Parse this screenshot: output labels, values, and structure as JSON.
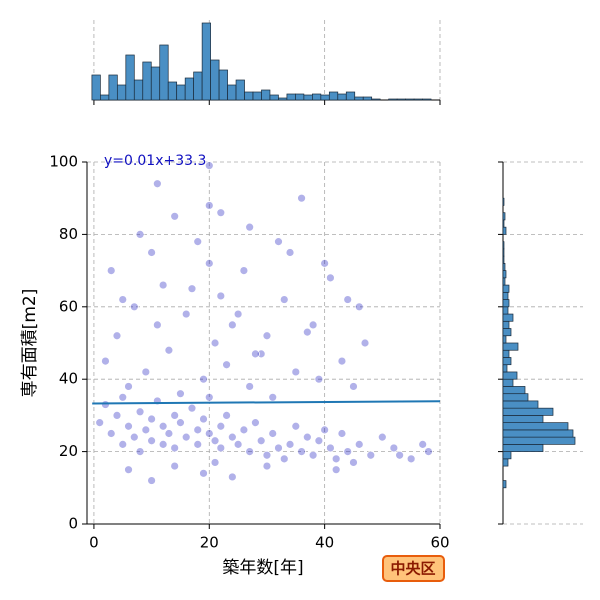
{
  "chart_data": [
    {
      "type": "scatter",
      "xlabel": "築年数[年]",
      "ylabel": "専有面積[m2]",
      "annotation": "y=0.01x+33.3",
      "badge": "中央区",
      "xlim": [
        -1.2,
        60
      ],
      "ylim": [
        0,
        100
      ],
      "xticks": [
        0,
        20,
        40,
        60
      ],
      "yticks": [
        0,
        20,
        40,
        60,
        80,
        100
      ],
      "grid": true,
      "color": "#2020c0",
      "fit_color": "#1f77b4",
      "fit": {
        "x": [
          -0.3,
          60
        ],
        "y": [
          33.3,
          33.9
        ]
      },
      "x": [
        1,
        2,
        3,
        4,
        5,
        5,
        6,
        7,
        8,
        8,
        9,
        10,
        10,
        11,
        12,
        12,
        13,
        14,
        14,
        15,
        16,
        17,
        18,
        18,
        19,
        20,
        20,
        21,
        22,
        22,
        23,
        24,
        25,
        26,
        27,
        28,
        29,
        30,
        31,
        32,
        33,
        34,
        35,
        36,
        37,
        38,
        39,
        40,
        41,
        42,
        43,
        44,
        45,
        46,
        48,
        50,
        52,
        55,
        58,
        2,
        4,
        6,
        7,
        9,
        11,
        13,
        15,
        17,
        19,
        20,
        21,
        23,
        25,
        27,
        29,
        31,
        33,
        35,
        37,
        39,
        41,
        43,
        45,
        47,
        3,
        5,
        8,
        10,
        12,
        14,
        16,
        18,
        20,
        22,
        24,
        26,
        28,
        30,
        32,
        36,
        40,
        44,
        11,
        20,
        22,
        27,
        34,
        38,
        46,
        6,
        10,
        14,
        19,
        21,
        24,
        30,
        42,
        53,
        57
      ],
      "y": [
        28,
        33,
        25,
        30,
        22,
        35,
        27,
        24,
        31,
        20,
        26,
        29,
        23,
        34,
        22,
        27,
        25,
        30,
        21,
        28,
        24,
        32,
        26,
        22,
        29,
        25,
        35,
        23,
        27,
        21,
        30,
        24,
        22,
        26,
        20,
        28,
        23,
        19,
        25,
        21,
        18,
        22,
        27,
        20,
        24,
        19,
        23,
        26,
        21,
        18,
        25,
        20,
        17,
        22,
        19,
        24,
        21,
        18,
        20,
        45,
        52,
        38,
        60,
        42,
        55,
        48,
        36,
        65,
        40,
        72,
        50,
        44,
        58,
        38,
        47,
        35,
        62,
        42,
        53,
        40,
        68,
        45,
        38,
        50,
        70,
        62,
        80,
        75,
        66,
        85,
        58,
        78,
        88,
        63,
        55,
        70,
        47,
        52,
        78,
        90,
        72,
        62,
        94,
        99,
        86,
        82,
        75,
        55,
        60,
        15,
        12,
        16,
        14,
        17,
        13,
        16,
        15,
        19,
        22
      ]
    },
    {
      "type": "histogram",
      "orientation": "vertical",
      "color": "#4a8fc4",
      "ylim": [
        0,
        80
      ],
      "bins": [
        -0.35,
        1.12,
        2.59,
        4.06,
        5.53,
        7.0,
        8.47,
        9.94,
        11.41,
        12.88,
        14.35,
        15.82,
        17.29,
        18.76,
        20.23,
        21.7,
        23.17,
        24.64,
        26.11,
        27.58,
        29.05,
        30.52,
        31.99,
        33.46,
        34.93,
        36.4,
        37.87,
        39.34,
        40.81,
        42.28,
        43.75,
        45.22,
        46.69,
        48.16,
        49.63,
        51.1,
        52.57,
        54.04,
        55.51,
        56.98,
        58.45
      ],
      "values": [
        25,
        5,
        25,
        15,
        45,
        20,
        38,
        33,
        55,
        18,
        15,
        22,
        28,
        77,
        40,
        30,
        15,
        20,
        8,
        8,
        10,
        5,
        2,
        6,
        6,
        5,
        6,
        5,
        8,
        6,
        8,
        3,
        3,
        1,
        0,
        1,
        1,
        1,
        1,
        1
      ]
    },
    {
      "type": "histogram",
      "orientation": "horizontal",
      "color": "#4a8fc4",
      "xlim": [
        0,
        80
      ],
      "bins": [
        10,
        12,
        14,
        16,
        18,
        20,
        22,
        24,
        26,
        28,
        30,
        32,
        34,
        36,
        38,
        40,
        42,
        44,
        46,
        48,
        50,
        52,
        54,
        56,
        58,
        60,
        62,
        64,
        66,
        68,
        70,
        72,
        74,
        76,
        78,
        80,
        82,
        84,
        86,
        88,
        90
      ],
      "values": [
        3,
        0,
        0,
        5,
        8,
        40,
        72,
        70,
        65,
        40,
        50,
        35,
        25,
        22,
        10,
        14,
        4,
        8,
        6,
        15,
        3,
        8,
        6,
        10,
        5,
        6,
        5,
        6,
        2,
        3,
        2,
        1,
        1,
        1,
        0,
        3,
        1,
        2,
        0,
        1
      ]
    }
  ]
}
